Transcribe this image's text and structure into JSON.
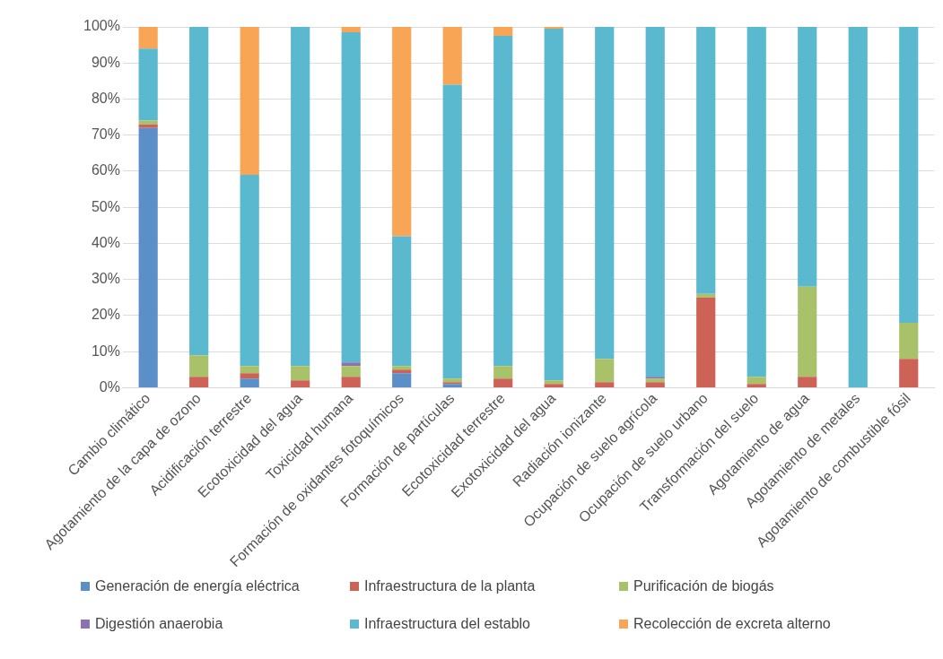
{
  "chart_data": {
    "type": "bar",
    "stacked": true,
    "grid": "y",
    "legend": "bottom",
    "categories": [
      "Cambio climático",
      "Agotamiento de la capa de ozono",
      "Acidificación terrestre",
      "Ecotoxicidad del agua",
      "Toxicidad humana",
      "Formación de oxidantes fotoquímicos",
      "Formación de partículas",
      "Ecotoxicidad terrestre",
      "Exotoxicidad del agua",
      "Radiación ionizante",
      "Ocupación de suelo agrícola",
      "Ocupación de suelo urbano",
      "Transformación del suelo",
      "Agotamiento de agua",
      "Agotamiento de metales",
      "Agotamiento de combustible fósil"
    ],
    "ylim": [
      0,
      100
    ],
    "yticks": [
      {
        "value": 0,
        "label": "0%"
      },
      {
        "value": 10,
        "label": "10%"
      },
      {
        "value": 20,
        "label": "20%"
      },
      {
        "value": 30,
        "label": "30%"
      },
      {
        "value": 40,
        "label": "40%"
      },
      {
        "value": 50,
        "label": "50%"
      },
      {
        "value": 60,
        "label": "60%"
      },
      {
        "value": 70,
        "label": "70%"
      },
      {
        "value": 80,
        "label": "80%"
      },
      {
        "value": 90,
        "label": "90%"
      },
      {
        "value": 100,
        "label": "100%"
      }
    ],
    "series": [
      {
        "name": "Generación de energía eléctrica",
        "color": "#5b8fc7",
        "values": [
          72,
          0,
          2.5,
          0,
          0,
          4,
          1,
          0,
          0,
          0,
          0,
          0,
          0,
          0,
          0,
          0
        ]
      },
      {
        "name": "Infraestructura de la planta",
        "color": "#cd6357",
        "values": [
          1,
          3,
          1.5,
          2,
          3,
          1,
          0.5,
          2.5,
          1,
          1.5,
          1.5,
          25,
          1,
          3,
          0,
          8
        ]
      },
      {
        "name": "Purificación de biogás",
        "color": "#a9c26a",
        "values": [
          1,
          6,
          2,
          4,
          3,
          1,
          1,
          3.5,
          1,
          6.5,
          1,
          1,
          2,
          25,
          0,
          10
        ]
      },
      {
        "name": "Digestión anaerobia",
        "color": "#8b72b0",
        "values": [
          0,
          0,
          0,
          0,
          1,
          0,
          0,
          0,
          0,
          0,
          0.5,
          0,
          0,
          0,
          0,
          0
        ]
      },
      {
        "name": "Infraestructura del establo",
        "color": "#5ab8cf",
        "values": [
          20,
          91,
          53,
          94,
          91.5,
          36,
          81.5,
          91.5,
          97.5,
          92,
          97,
          74,
          97,
          72,
          100,
          82
        ]
      },
      {
        "name": "Recolección de excreta alterno",
        "color": "#f8a556",
        "values": [
          6,
          0,
          41,
          0,
          1.5,
          58,
          16,
          2.5,
          0.5,
          0,
          0,
          0,
          0,
          0,
          0,
          0
        ]
      }
    ]
  }
}
